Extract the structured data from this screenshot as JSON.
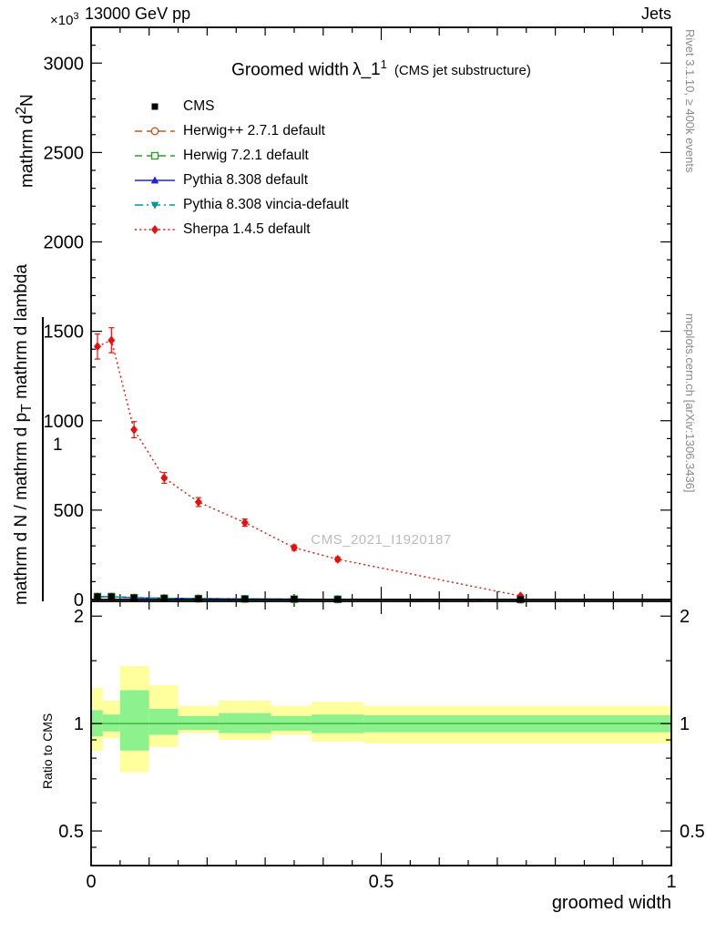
{
  "header": {
    "collision": "13000 GeV pp",
    "analysis_group": "Jets"
  },
  "title": {
    "text": "Groomed width",
    "lambda": "λ_1",
    "sup": "1",
    "note": "(CMS jet substructure)"
  },
  "watermark": "CMS_2021_I1920187",
  "side_notes": {
    "rivet": "Rivet 3.1.10, ≥ 400k events",
    "mcplots": "mcplots.cern.ch [arXiv:1306.3436]"
  },
  "axes": {
    "exponent": {
      "base": "×10",
      "sup": "3"
    },
    "x": {
      "title": "groomed width",
      "ticks": [
        0,
        0.5,
        1
      ],
      "min": 0,
      "max": 1
    },
    "y_main": {
      "label_top_pre": "mathrm d",
      "label_top_sup": "2",
      "label_top_post": "N",
      "label_long_pre": "mathrm d N / mathrm d p",
      "label_long_sub": "T",
      "label_long_post": " mathrm d lambda",
      "label_one": "1"
    },
    "y_ratio": {
      "title": "Ratio to CMS"
    }
  },
  "colors": {
    "band_yellow": "#ffff9d",
    "band_green": "#8df28d",
    "ref_line": "#41b941",
    "frame": "#000000"
  },
  "legend": [
    {
      "label": "CMS",
      "color": "#000000",
      "marker": "square",
      "line": "none"
    },
    {
      "label": "Herwig++ 2.7.1 default",
      "color": "#c15a1e",
      "marker": "circle-open",
      "line": "dashed"
    },
    {
      "label": "Herwig 7.2.1 default",
      "color": "#2f9e2f",
      "marker": "square-open",
      "line": "dashed"
    },
    {
      "label": "Pythia 8.308 default",
      "color": "#2424cd",
      "marker": "triangle-up",
      "line": "solid"
    },
    {
      "label": "Pythia 8.308 vincia-default",
      "color": "#00989d",
      "marker": "triangle-down",
      "line": "dashdot"
    },
    {
      "label": "Sherpa 1.4.5 default",
      "color": "#e8100c",
      "marker": "diamond",
      "line": "dotted"
    }
  ],
  "chart_data": [
    {
      "type": "line",
      "panel": "main",
      "title": "Groomed width λ_1^1 (CMS jet substructure)",
      "xlabel": "groomed width",
      "ylabel": "mathrm d^2 N / mathrm d p_T mathrm d lambda (×10^3)",
      "xlim": [
        0,
        1
      ],
      "ylim": [
        0,
        3200
      ],
      "yticks": [
        0,
        500,
        1000,
        1500,
        2000,
        2500,
        3000
      ],
      "x": [
        0.011,
        0.035,
        0.074,
        0.126,
        0.185,
        0.265,
        0.35,
        0.425,
        0.74
      ],
      "series": [
        {
          "name": "CMS",
          "values": [
            16,
            16,
            10,
            7,
            5,
            3.4,
            2,
            1.2,
            0.2
          ]
        },
        {
          "name": "Herwig++ 2.7.1 default",
          "values": [
            15.5,
            15.8,
            9.7,
            6.9,
            4.9,
            3.3,
            1.95,
            1.15,
            0.2
          ]
        },
        {
          "name": "Herwig 7.2.1 default",
          "values": [
            16.2,
            16,
            10,
            7,
            5,
            3.4,
            2,
            1.2,
            0.2
          ]
        },
        {
          "name": "Pythia 8.308 default",
          "values": [
            15.8,
            16,
            10,
            7,
            5,
            3.4,
            2,
            1.2,
            0.2
          ]
        },
        {
          "name": "Pythia 8.308 vincia-default",
          "values": [
            16,
            16,
            10,
            7,
            5,
            3.4,
            2,
            1.2,
            0.2
          ]
        },
        {
          "name": "Sherpa 1.4.5 default",
          "values": [
            1415,
            1450,
            950,
            680,
            545,
            430,
            290,
            225,
            20
          ],
          "errors": [
            70,
            70,
            45,
            30,
            25,
            20,
            15,
            12,
            6
          ]
        }
      ]
    },
    {
      "type": "band",
      "panel": "ratio",
      "ylabel": "Ratio to CMS",
      "yscale": "log",
      "ylim": [
        0.4,
        2.2
      ],
      "yticks": [
        0.5,
        1,
        2
      ],
      "yminor": [
        0.45,
        0.6,
        0.7,
        0.8,
        0.9,
        1.5
      ],
      "reference_line": 1.0,
      "bins": [
        {
          "x0": 0.0,
          "x1": 0.02,
          "yellow": [
            0.84,
            1.26
          ],
          "green": [
            0.92,
            1.09
          ]
        },
        {
          "x0": 0.02,
          "x1": 0.05,
          "yellow": [
            0.91,
            1.16
          ],
          "green": [
            0.95,
            1.06
          ]
        },
        {
          "x0": 0.05,
          "x1": 0.1,
          "yellow": [
            0.73,
            1.45
          ],
          "green": [
            0.84,
            1.24
          ]
        },
        {
          "x0": 0.1,
          "x1": 0.15,
          "yellow": [
            0.86,
            1.28
          ],
          "green": [
            0.93,
            1.1
          ]
        },
        {
          "x0": 0.15,
          "x1": 0.22,
          "yellow": [
            0.94,
            1.12
          ],
          "green": [
            0.96,
            1.05
          ]
        },
        {
          "x0": 0.22,
          "x1": 0.31,
          "yellow": [
            0.9,
            1.16
          ],
          "green": [
            0.94,
            1.07
          ]
        },
        {
          "x0": 0.31,
          "x1": 0.38,
          "yellow": [
            0.93,
            1.12
          ],
          "green": [
            0.955,
            1.05
          ]
        },
        {
          "x0": 0.38,
          "x1": 0.47,
          "yellow": [
            0.89,
            1.15
          ],
          "green": [
            0.94,
            1.06
          ]
        },
        {
          "x0": 0.47,
          "x1": 1.0,
          "yellow": [
            0.88,
            1.12
          ],
          "green": [
            0.945,
            1.055
          ]
        }
      ]
    }
  ]
}
